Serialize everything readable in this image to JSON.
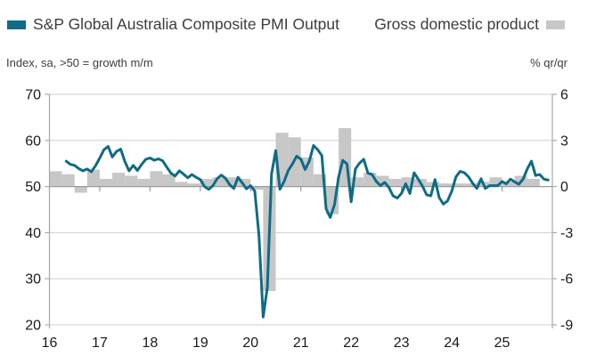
{
  "legend": {
    "pmi": {
      "label": "S&P Global Australia Composite PMI Output",
      "color": "#0e6c86"
    },
    "gdp": {
      "label": "Gross domestic product",
      "color": "#c7c7c7"
    }
  },
  "axis_notes": {
    "left": "Index, sa, >50 = growth m/m",
    "right": "% qr/qr"
  },
  "chart_data": {
    "type": "combo",
    "legend_position": "top",
    "grid": "horizontal",
    "x_axis": {
      "tick_labels": [
        "16",
        "17",
        "18",
        "19",
        "20",
        "21",
        "22",
        "23",
        "24",
        "25"
      ],
      "range_years": [
        2016,
        2026
      ]
    },
    "left_axis": {
      "label": "Index, sa, >50 = growth m/m",
      "ticks": [
        70,
        60,
        50,
        40,
        30,
        20
      ],
      "range": [
        20,
        70
      ],
      "baseline": 50
    },
    "right_axis": {
      "label": "% qr/qr",
      "ticks": [
        6,
        3,
        0,
        -3,
        -6,
        -9
      ],
      "range": [
        -9,
        6
      ],
      "baseline": 0
    },
    "series": [
      {
        "name": "S&P Global Australia Composite PMI Output",
        "type": "line",
        "axis": "left",
        "color": "#0e6c86",
        "frequency": "monthly",
        "start": "2016-05",
        "values": [
          55.5,
          54.8,
          54.6,
          53.9,
          53.4,
          53.8,
          53.2,
          54.5,
          56.2,
          58.0,
          58.7,
          56.4,
          57.6,
          58.1,
          55.4,
          53.4,
          54.6,
          53.5,
          54.8,
          55.9,
          56.2,
          55.7,
          56.0,
          55.6,
          54.2,
          52.9,
          52.3,
          53.4,
          52.7,
          51.9,
          52.6,
          52.0,
          51.5,
          50.0,
          49.4,
          50.2,
          51.7,
          52.5,
          51.8,
          50.4,
          49.6,
          52.0,
          50.8,
          49.5,
          50.2,
          49.0,
          39.4,
          21.7,
          28.1,
          52.7,
          57.8,
          49.4,
          51.1,
          53.5,
          54.9,
          56.6,
          55.9,
          53.7,
          55.5,
          58.9,
          58.0,
          56.7,
          45.2,
          43.3,
          46.0,
          52.1,
          55.7,
          54.9,
          46.7,
          53.8,
          55.1,
          55.9,
          52.9,
          52.6,
          51.1,
          50.2,
          50.9,
          49.8,
          48.0,
          47.5,
          48.5,
          50.6,
          48.5,
          53.0,
          51.6,
          50.1,
          48.2,
          48.0,
          51.5,
          47.6,
          46.2,
          46.9,
          49.0,
          52.1,
          53.3,
          53.0,
          52.1,
          50.7,
          49.6,
          51.7,
          49.6,
          50.2,
          50.2,
          50.2,
          51.1,
          50.6,
          51.6,
          51.0,
          50.5,
          51.6,
          53.8,
          55.5,
          52.4,
          52.6,
          51.6,
          51.4
        ]
      },
      {
        "name": "Gross domestic product",
        "type": "bar",
        "axis": "right",
        "color": "#c7c7c7",
        "frequency": "quarterly",
        "start": "2016-Q1",
        "values": [
          1.0,
          0.8,
          -0.4,
          1.1,
          0.5,
          0.9,
          0.7,
          0.5,
          1.0,
          0.8,
          0.3,
          0.2,
          0.5,
          0.6,
          0.6,
          0.5,
          -0.2,
          -6.8,
          3.5,
          3.2,
          1.9,
          0.8,
          -1.8,
          3.8,
          0.6,
          0.9,
          0.7,
          0.5,
          0.6,
          0.5,
          0.3,
          0.2,
          0.2,
          0.2,
          0.3,
          0.6,
          0.3,
          0.7,
          0.5
        ]
      }
    ],
    "colors": {
      "grid": "#d0d0d0",
      "zero_line": "#9a9a9a",
      "spine": "#a8a8a8",
      "tick_text": "#1a1a1a"
    }
  }
}
